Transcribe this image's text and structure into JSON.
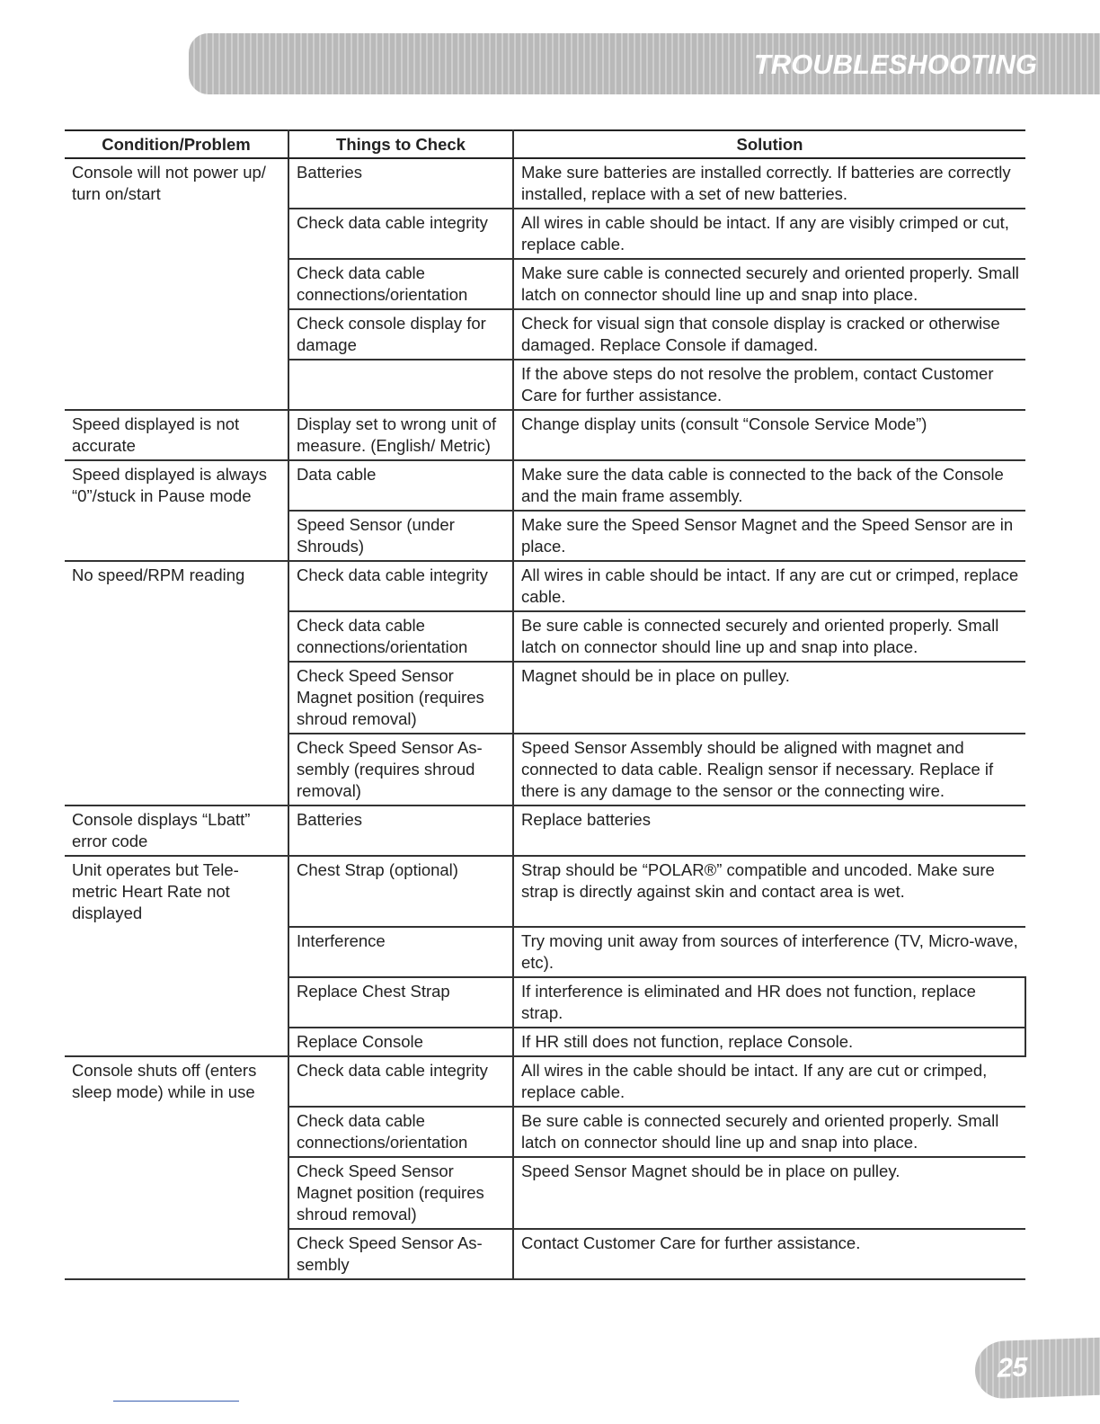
{
  "header": {
    "title": "TROUBLESHOOTING"
  },
  "table": {
    "columns": [
      "Condition/Problem",
      "Things to Check",
      "Solution"
    ],
    "groups": [
      {
        "condition": "Console will not power up/ turn on/start",
        "checks": [
          {
            "check": "Batteries",
            "solution": "Make sure batteries are installed correctly. If batteries are correctly installed, replace with a set of new batteries."
          },
          {
            "check": "Check data cable integrity",
            "solution": "All wires in cable should be intact. If any are visibly crimped or cut, replace cable."
          },
          {
            "check": "Check data cable connections/orientation",
            "solution": "Make sure cable is connected securely and oriented properly. Small latch on connector should line up and snap into place."
          },
          {
            "check": "Check console display for damage",
            "solution": "Check for visual sign that console display is cracked or otherwise damaged. Replace Console if damaged."
          },
          {
            "check": "",
            "solution": "If the above steps do not resolve the problem, contact Customer Care for further assistance."
          }
        ]
      },
      {
        "condition": "Speed displayed is not accurate",
        "checks": [
          {
            "check": "Display set to wrong unit of measure. (English/ Metric)",
            "solution": "Change display units (consult “Console Service Mode”)"
          }
        ]
      },
      {
        "condition": "Speed displayed is always “0”/stuck in Pause mode",
        "checks": [
          {
            "check": "Data cable",
            "solution": "Make sure the data cable is connected to the back of the Console and the main frame assembly."
          },
          {
            "check": "Speed Sensor (under Shrouds)",
            "solution": "Make sure the Speed Sensor Magnet and the Speed Sensor are in place."
          }
        ]
      },
      {
        "condition": "No speed/RPM reading",
        "checks": [
          {
            "check": "Check data cable integrity",
            "solution": "All wires in cable should be intact. If any are cut or crimped, replace cable."
          },
          {
            "check": "Check data cable connections/orientation",
            "solution": "Be sure cable is connected securely and oriented properly. Small latch on connector should line up and snap into place."
          },
          {
            "check": "Check Speed Sensor Magnet position (requires shroud removal)",
            "solution": "Magnet should be in place on pulley."
          },
          {
            "check": "Check Speed Sensor As-sembly (requires shroud removal)",
            "solution": "Speed Sensor Assembly should be aligned with magnet and connected to data cable. Realign sensor if necessary. Replace if there is any damage to the sensor or the connecting wire."
          }
        ]
      },
      {
        "condition": "Console displays “Lbatt” error code",
        "checks": [
          {
            "check": "Batteries",
            "solution": "Replace batteries"
          }
        ]
      },
      {
        "condition": "Unit operates but Tele-metric Heart Rate not displayed",
        "checks": [
          {
            "check": "Chest Strap (optional)",
            "solution": "Strap should be “POLAR®” compatible and uncoded. Make sure strap is directly against skin and contact area is wet.",
            "tall": true
          },
          {
            "check": "Interference",
            "solution": "Try moving unit away from sources of interference (TV, Micro-wave, etc)."
          },
          {
            "check": "Replace Chest Strap",
            "solution": "If interference is eliminated and HR does not function, replace strap.",
            "boxed": true
          },
          {
            "check": "Replace Console",
            "solution": "If HR still does not function, replace Console.",
            "boxed": true
          }
        ]
      },
      {
        "condition": "Console shuts off (enters sleep mode) while in use",
        "checks": [
          {
            "check": "Check data cable integrity",
            "solution": "All wires in the cable should be intact. If any are cut or crimped, replace cable."
          },
          {
            "check": "Check data cable connections/orientation",
            "solution": "Be sure cable is connected securely and oriented properly. Small latch on connector should line up and snap into place."
          },
          {
            "check": "Check Speed Sensor Magnet position (requires shroud removal)",
            "solution": "Speed Sensor Magnet should be in place on pulley."
          },
          {
            "check": "Check Speed Sensor As-sembly",
            "solution": "Contact Customer Care for further assistance."
          }
        ]
      }
    ]
  },
  "footer": {
    "page_number": "25"
  }
}
